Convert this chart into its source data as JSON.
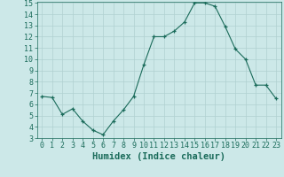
{
  "x": [
    0,
    1,
    2,
    3,
    4,
    5,
    6,
    7,
    8,
    9,
    10,
    11,
    12,
    13,
    14,
    15,
    16,
    17,
    18,
    19,
    20,
    21,
    22,
    23
  ],
  "y": [
    6.7,
    6.6,
    5.1,
    5.6,
    4.5,
    3.7,
    3.3,
    4.5,
    5.5,
    6.7,
    9.5,
    12.0,
    12.0,
    12.5,
    13.3,
    15.0,
    15.0,
    14.7,
    12.9,
    10.9,
    10.0,
    7.7,
    7.7,
    6.5
  ],
  "xlabel": "Humidex (Indice chaleur)",
  "ylim": [
    3,
    15
  ],
  "xlim": [
    -0.5,
    23.5
  ],
  "yticks": [
    3,
    4,
    5,
    6,
    7,
    8,
    9,
    10,
    11,
    12,
    13,
    14,
    15
  ],
  "xticks": [
    0,
    1,
    2,
    3,
    4,
    5,
    6,
    7,
    8,
    9,
    10,
    11,
    12,
    13,
    14,
    15,
    16,
    17,
    18,
    19,
    20,
    21,
    22,
    23
  ],
  "line_color": "#1a6b5a",
  "marker_color": "#1a6b5a",
  "bg_color": "#cce8e8",
  "grid_color": "#b0d0d0",
  "xlabel_fontsize": 7.5,
  "tick_fontsize": 6.0
}
